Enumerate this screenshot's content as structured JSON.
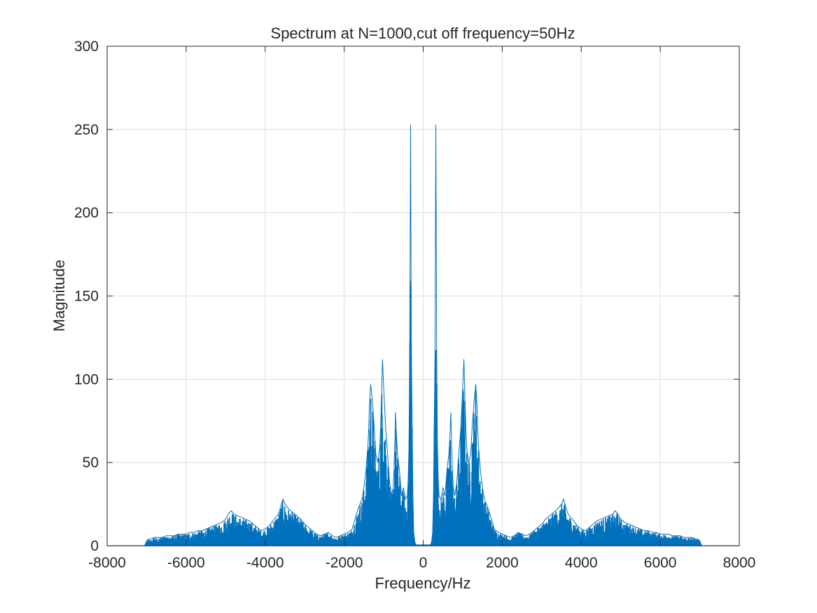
{
  "chart_data": {
    "type": "line",
    "title": "Spectrum at N=1000,cut off frequency=50Hz",
    "xlabel": "Frequency/Hz",
    "ylabel": "Magnitude",
    "xlim": [
      -8000,
      8000
    ],
    "ylim": [
      0,
      300
    ],
    "xticks": [
      -8000,
      -6000,
      -4000,
      -2000,
      0,
      2000,
      4000,
      6000,
      8000
    ],
    "xtick_labels": [
      "-8000",
      "-6000",
      "-4000",
      "-2000",
      "0",
      "2000",
      "4000",
      "6000",
      "8000"
    ],
    "yticks": [
      0,
      50,
      100,
      150,
      200,
      250,
      300
    ],
    "ytick_labels": [
      "0",
      "50",
      "100",
      "150",
      "200",
      "250",
      "300"
    ],
    "grid": true,
    "line_color": "#0072BD",
    "series": [
      {
        "name": "spectrum",
        "symmetric": true,
        "x": [
          0,
          30,
          60,
          90,
          120,
          150,
          180,
          210,
          240,
          260,
          280,
          300,
          320,
          340,
          360,
          380,
          400,
          450,
          500,
          550,
          600,
          650,
          680,
          700,
          720,
          740,
          760,
          800,
          850,
          900,
          950,
          1000,
          1030,
          1060,
          1080,
          1100,
          1120,
          1150,
          1200,
          1250,
          1300,
          1330,
          1360,
          1380,
          1400,
          1450,
          1500,
          1550,
          1600,
          1650,
          1700,
          1750,
          1800,
          1900,
          2000,
          2100,
          2200,
          2300,
          2400,
          2500,
          2600,
          2700,
          2800,
          2900,
          3000,
          3100,
          3200,
          3300,
          3400,
          3500,
          3550,
          3600,
          3650,
          3700,
          3800,
          3900,
          4000,
          4100,
          4200,
          4300,
          4400,
          4500,
          4600,
          4700,
          4800,
          4850,
          4900,
          4950,
          5000,
          5100,
          5200,
          5300,
          5400,
          5500,
          5600,
          5700,
          5800,
          5900,
          6000,
          6100,
          6200,
          6300,
          6400,
          6500,
          6600,
          6700,
          6800,
          6900,
          6950,
          7000,
          7050,
          8000
        ],
        "y": [
          0.5,
          0.5,
          0.5,
          0.5,
          0.5,
          0.5,
          0.5,
          2,
          8,
          30,
          75,
          115,
          253,
          120,
          60,
          40,
          30,
          28,
          35,
          30,
          45,
          55,
          68,
          80,
          60,
          45,
          35,
          30,
          38,
          55,
          70,
          95,
          112,
          85,
          70,
          60,
          55,
          50,
          55,
          75,
          90,
          97,
          85,
          70,
          60,
          45,
          35,
          28,
          25,
          22,
          18,
          14,
          10,
          8,
          7,
          6,
          5,
          6,
          8,
          7,
          6,
          7,
          9,
          11,
          13,
          16,
          18,
          20,
          22,
          25,
          28,
          24,
          20,
          18,
          15,
          12,
          10,
          9,
          11,
          13,
          15,
          16,
          17,
          18,
          19,
          21,
          20,
          18,
          16,
          14,
          13,
          12,
          11,
          10,
          9,
          9,
          8,
          8,
          7,
          7,
          7,
          6,
          6,
          6,
          5,
          5,
          5,
          4,
          4,
          3,
          0,
          0
        ]
      }
    ]
  }
}
